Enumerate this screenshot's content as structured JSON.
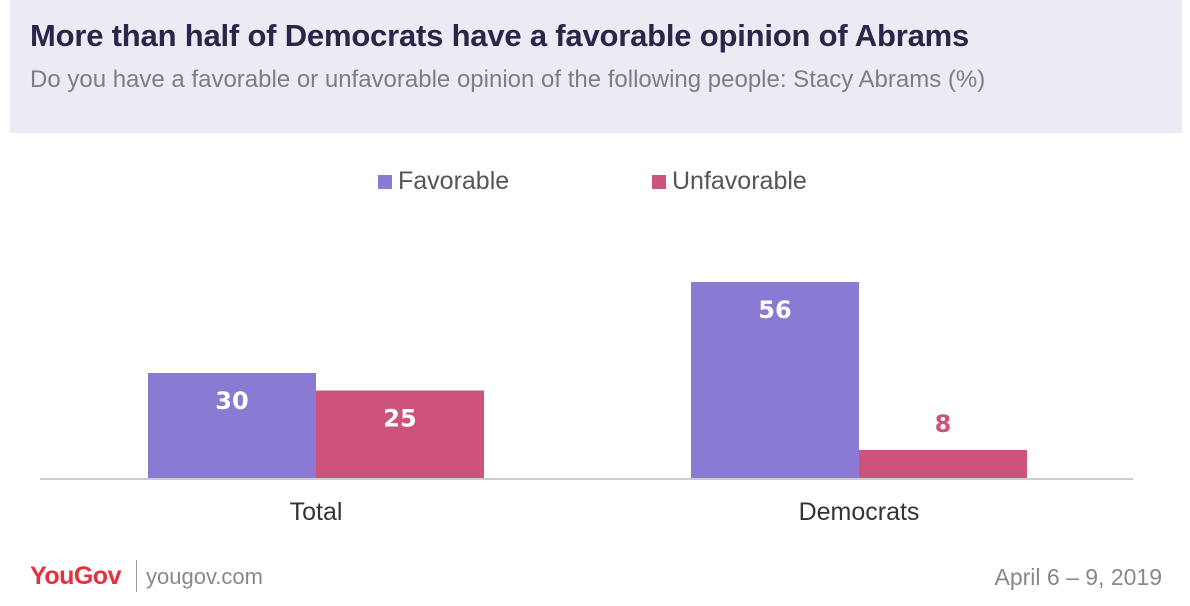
{
  "header": {
    "title": "More than half of Democrats have a favorable opinion of Abrams",
    "subtitle": "Do you have a favorable or unfavorable opinion of the following people: Stacy Abrams (%)"
  },
  "legend": {
    "items": [
      {
        "label": "Favorable",
        "color": "#8b7ad3"
      },
      {
        "label": "Unfavorable",
        "color": "#cc537d"
      }
    ]
  },
  "footer": {
    "brand": "YouGov",
    "url": "yougov.com",
    "date": "April 6 – 9, 2019"
  },
  "chart_data": {
    "type": "bar",
    "categories": [
      "Total",
      "Democrats"
    ],
    "series": [
      {
        "name": "Favorable",
        "values": [
          30,
          56
        ],
        "color": "#8b7ad3"
      },
      {
        "name": "Unfavorable",
        "values": [
          25,
          8
        ],
        "color": "#cc537d"
      }
    ],
    "title": "More than half of Democrats have a favorable opinion of Abrams",
    "xlabel": "",
    "ylabel": "",
    "ylim": [
      0,
      60
    ],
    "grid": false,
    "legend": "top-center",
    "data_labels": true
  }
}
